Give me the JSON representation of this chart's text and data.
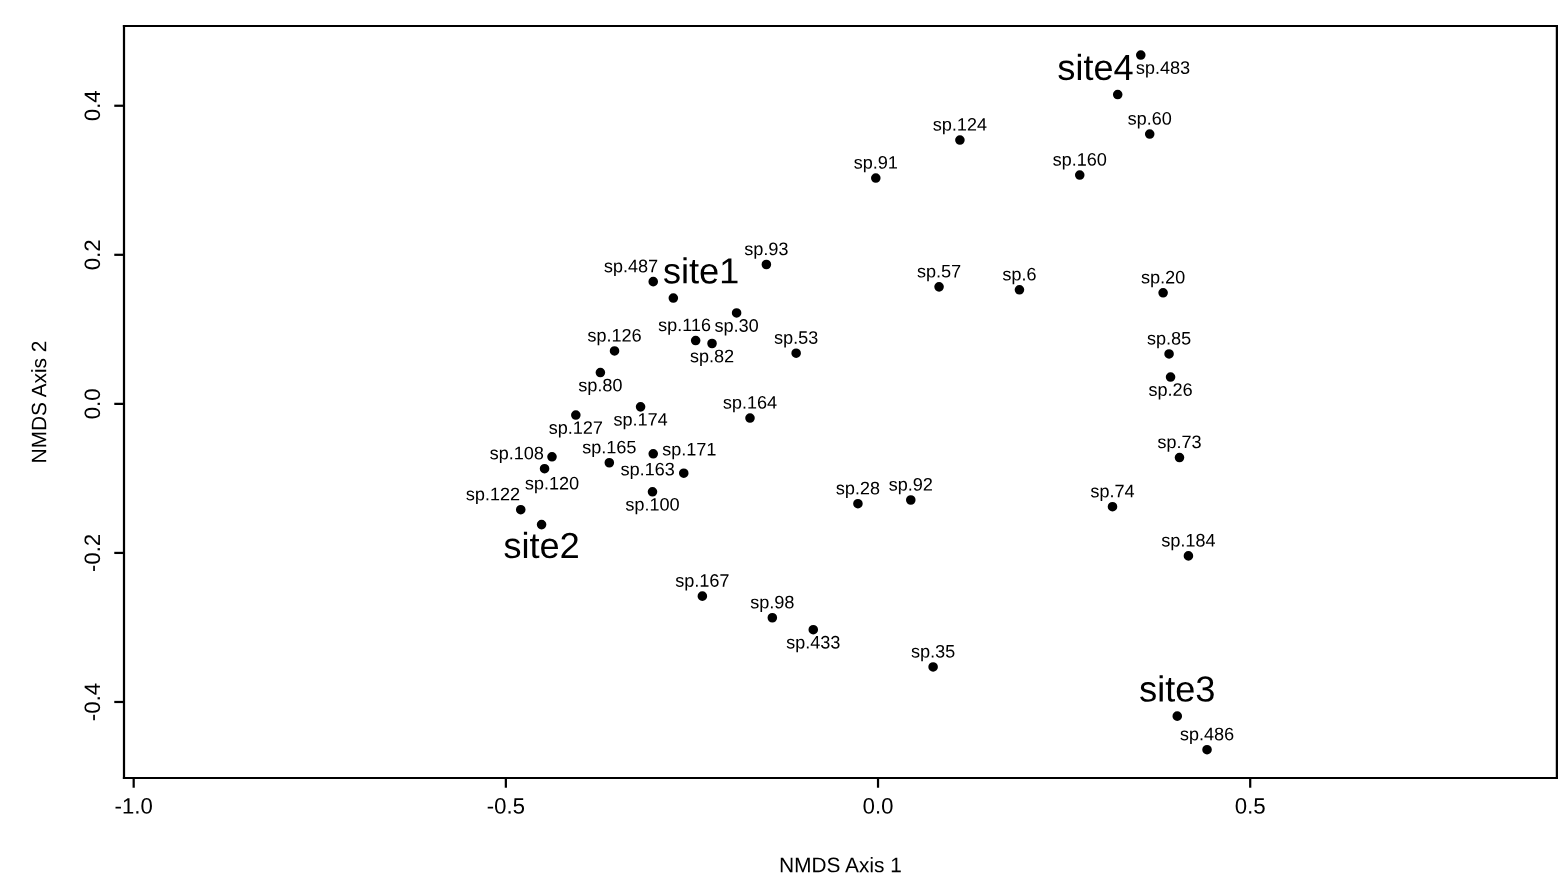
{
  "chart_data": {
    "type": "scatter",
    "xlabel": "NMDS Axis 1",
    "ylabel": "NMDS Axis 2",
    "marker": "circle",
    "grid": false,
    "xlim": [
      -1.013,
      0.912
    ],
    "ylim": [
      -0.502,
      0.507
    ],
    "xticks": [
      {
        "value": -1.0,
        "label": "-1.0"
      },
      {
        "value": -0.5,
        "label": "-0.5"
      },
      {
        "value": 0.0,
        "label": "0.0"
      },
      {
        "value": 0.5,
        "label": "0.5"
      }
    ],
    "yticks": [
      {
        "value": -0.4,
        "label": "-0.4"
      },
      {
        "value": -0.2,
        "label": "-0.2"
      },
      {
        "value": 0.0,
        "label": "0.0"
      },
      {
        "value": 0.2,
        "label": "0.2"
      },
      {
        "value": 0.4,
        "label": "0.4"
      }
    ],
    "series": [
      {
        "color": "#000000",
        "x": [
          0.353,
          0.365,
          0.11,
          -0.003,
          0.271,
          -0.15,
          -0.302,
          -0.19,
          0.082,
          0.19,
          0.383,
          -0.245,
          -0.223,
          -0.354,
          -0.11,
          0.391,
          -0.373,
          0.393,
          -0.406,
          -0.319,
          -0.172,
          -0.438,
          -0.448,
          -0.361,
          -0.302,
          -0.261,
          -0.303,
          0.405,
          -0.027,
          0.044,
          0.315,
          -0.48,
          0.417,
          -0.236,
          -0.142,
          -0.087,
          0.074,
          0.442
        ],
        "values": [
          0.468,
          0.362,
          0.354,
          0.303,
          0.307,
          0.187,
          0.164,
          0.122,
          0.157,
          0.153,
          0.149,
          0.085,
          0.081,
          0.071,
          0.068,
          0.067,
          0.042,
          0.036,
          -0.015,
          -0.004,
          -0.019,
          -0.071,
          -0.087,
          -0.079,
          -0.067,
          -0.093,
          -0.118,
          -0.072,
          -0.134,
          -0.129,
          -0.138,
          -0.142,
          -0.204,
          -0.258,
          -0.287,
          -0.303,
          -0.353,
          -0.464
        ],
        "value_labels": [
          "sp.483",
          "sp.60",
          "sp.124",
          "sp.91",
          "sp.160",
          "sp.93",
          "sp.487",
          "sp.30",
          "sp.57",
          "sp.6",
          "sp.20",
          "sp.116",
          "sp.82",
          "sp.126",
          "sp.53",
          "sp.85",
          "sp.80",
          "sp.26",
          "sp.127",
          "sp.174",
          "sp.164",
          "sp.120",
          "sp.108",
          "sp.165",
          "sp.163",
          "sp.171",
          "sp.100",
          "sp.73",
          "sp.28",
          "sp.92",
          "sp.74",
          "sp.122",
          "sp.184",
          "sp.167",
          "sp.98",
          "sp.433",
          "sp.35",
          "sp.486"
        ]
      },
      {
        "color": "#000000",
        "x": [
          -0.275,
          -0.452,
          0.402,
          0.322
        ],
        "values": [
          0.142,
          -0.162,
          -0.419,
          0.415
        ],
        "value_labels": [
          "site1",
          "site2",
          "site3",
          "site4"
        ]
      }
    ]
  }
}
